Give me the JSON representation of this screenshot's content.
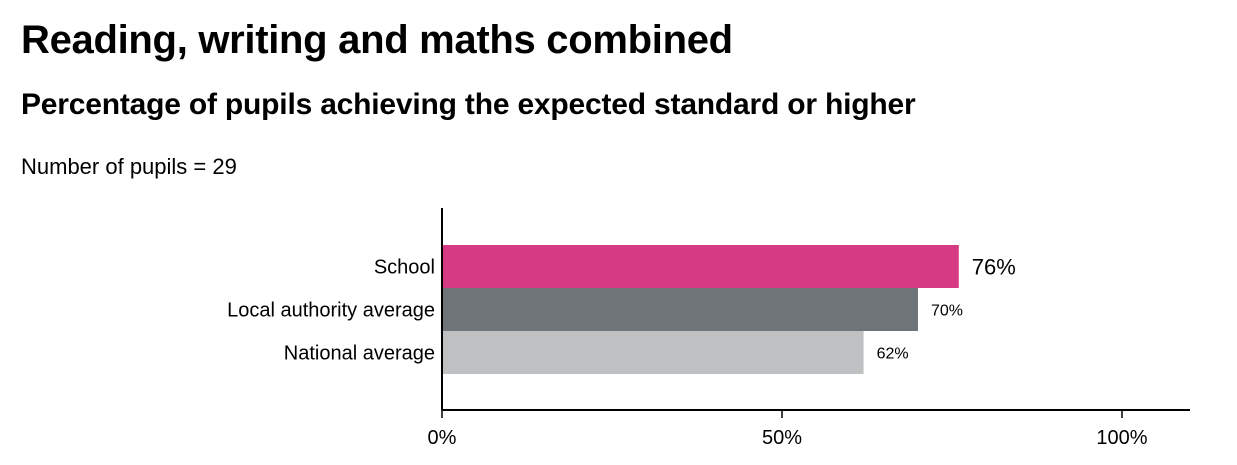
{
  "title": "Reading, writing and maths combined",
  "subtitle": "Percentage of pupils achieving the expected standard or higher",
  "note": "Number of pupils = 29",
  "chart_data": {
    "type": "bar",
    "orientation": "horizontal",
    "categories": [
      "School",
      "Local authority average",
      "National average"
    ],
    "values": [
      76,
      70,
      62
    ],
    "data_labels": [
      "76%",
      "70%",
      "62%"
    ],
    "colors": [
      "#d63a82",
      "#6e7477",
      "#bfc0c2"
    ],
    "xlim": [
      0,
      110
    ],
    "xticks": [
      0,
      50,
      100
    ],
    "xtick_labels": [
      "0%",
      "50%",
      "100%"
    ],
    "grid": false,
    "xlabel": "",
    "ylabel": ""
  }
}
